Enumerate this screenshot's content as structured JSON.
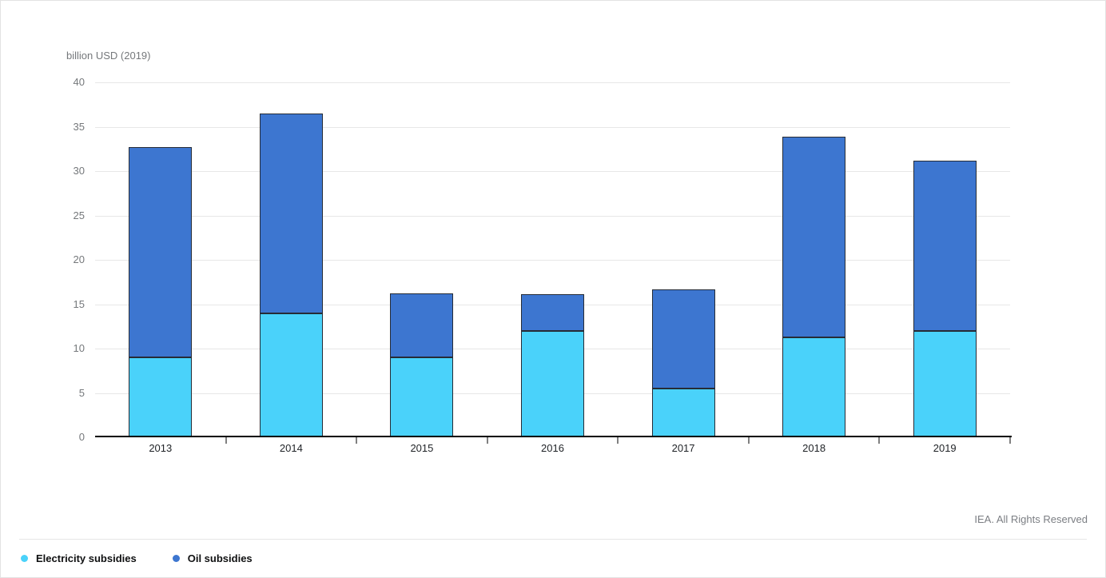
{
  "chart_data": {
    "type": "bar",
    "stacked": true,
    "title": "",
    "xlabel": "",
    "ylabel": "billion USD (2019)",
    "ylim": [
      0,
      40
    ],
    "ytick_step": 5,
    "ytick_labels": [
      "0",
      "5",
      "10",
      "15",
      "20",
      "25",
      "30",
      "35",
      "40"
    ],
    "grid": true,
    "legend_position": "bottom-left",
    "categories": [
      "2013",
      "2014",
      "2015",
      "2016",
      "2017",
      "2018",
      "2019"
    ],
    "series": [
      {
        "name": "Electricity subsidies",
        "color": "#4ad2fa",
        "values": [
          9.0,
          14.0,
          9.0,
          12.0,
          5.5,
          11.3,
          12.0
        ]
      },
      {
        "name": "Oil subsidies",
        "color": "#3d76d0",
        "values": [
          23.7,
          22.5,
          7.2,
          4.1,
          11.2,
          22.6,
          19.2
        ]
      }
    ],
    "totals": [
      32.7,
      36.5,
      16.2,
      16.1,
      16.7,
      33.9,
      31.2
    ]
  },
  "footer": {
    "attribution": "IEA. All Rights Reserved"
  },
  "colors": {
    "electricity": "#4ad2fa",
    "oil": "#3d76d0",
    "bar_border": "#262c36",
    "gridline": "#e7e7e7",
    "axis_line": "#000000",
    "axis_tick": "#808080",
    "y_label_text": "#75787b",
    "x_label_text": "#1f2226",
    "attribution_text": "#7b7e83",
    "legend_text": "#0f1011",
    "page_border": "#e3e3e3",
    "divider": "#e6e6e6"
  }
}
